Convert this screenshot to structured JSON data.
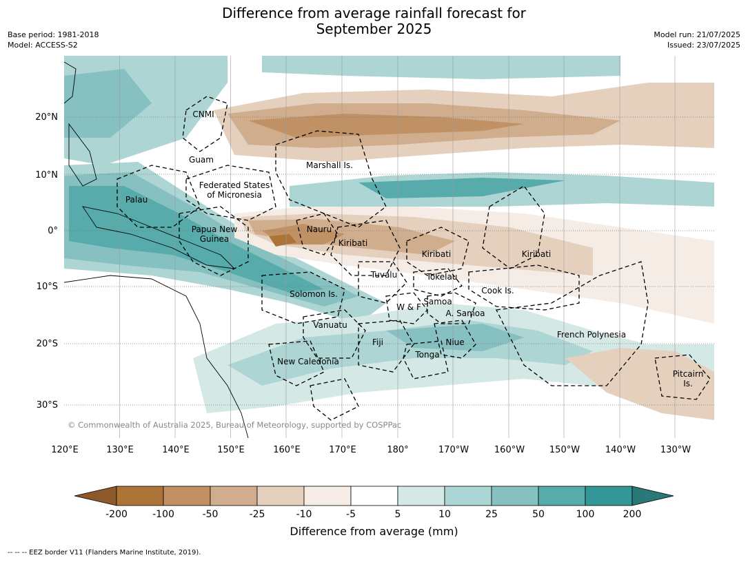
{
  "title_line1": "Difference from average rainfall forecast for",
  "title_line2": "September 2025",
  "meta_left": [
    "Base period: 1981-2018",
    "Model: ACCESS-S2"
  ],
  "meta_right": [
    "Model run: 21/07/2025",
    "Issued: 23/07/2025"
  ],
  "copyright": "© Commonwealth of Australia 2025, Bureau of Meteorology, supported by COSPPac",
  "lon_labels": [
    "120°E",
    "130°E",
    "140°E",
    "150°E",
    "160°E",
    "170°E",
    "180°",
    "170°W",
    "160°W",
    "150°W",
    "140°W",
    "130°W"
  ],
  "lat_labels": [
    "20°N",
    "10°N",
    "0°",
    "10°S",
    "20°S",
    "30°S"
  ],
  "regions": [
    {
      "name": "CNMI",
      "lines": [
        "CNMI"
      ]
    },
    {
      "name": "Guam",
      "lines": [
        "Guam"
      ]
    },
    {
      "name": "Marshall",
      "lines": [
        "Marshall Is."
      ]
    },
    {
      "name": "FSM",
      "lines": [
        "Federated States",
        "of Micronesia"
      ]
    },
    {
      "name": "Palau",
      "lines": [
        "Palau"
      ]
    },
    {
      "name": "PNG",
      "lines": [
        "Papua New",
        "Guinea"
      ]
    },
    {
      "name": "Nauru",
      "lines": [
        "Nauru"
      ]
    },
    {
      "name": "Kiribati-W",
      "lines": [
        "Kiribati"
      ]
    },
    {
      "name": "Kiribati-C",
      "lines": [
        "Kiribati"
      ]
    },
    {
      "name": "Kiribati-E",
      "lines": [
        "Kiribati"
      ]
    },
    {
      "name": "Tuvalu",
      "lines": [
        "Tuvalu"
      ]
    },
    {
      "name": "Tokelau",
      "lines": [
        "Tokelau"
      ]
    },
    {
      "name": "Cook",
      "lines": [
        "Cook Is."
      ]
    },
    {
      "name": "Solomon",
      "lines": [
        "Solomon Is."
      ]
    },
    {
      "name": "Samoa",
      "lines": [
        "Samoa"
      ]
    },
    {
      "name": "WF",
      "lines": [
        "W & F"
      ]
    },
    {
      "name": "ASamoa",
      "lines": [
        "A. Samoa"
      ]
    },
    {
      "name": "Vanuatu",
      "lines": [
        "Vanuatu"
      ]
    },
    {
      "name": "Fiji",
      "lines": [
        "Fiji"
      ]
    },
    {
      "name": "Niue",
      "lines": [
        "Niue"
      ]
    },
    {
      "name": "Tonga",
      "lines": [
        "Tonga"
      ]
    },
    {
      "name": "FrenchPolynesia",
      "lines": [
        "French Polynesia"
      ]
    },
    {
      "name": "NewCaledonia",
      "lines": [
        "New Caledonia"
      ]
    },
    {
      "name": "Pitcairn",
      "lines": [
        "Pitcairn",
        "Is."
      ]
    }
  ],
  "colorbar": {
    "ticks": [
      "-200",
      "-100",
      "-50",
      "-25",
      "-10",
      "-5",
      "5",
      "10",
      "25",
      "50",
      "100",
      "200"
    ],
    "colors": [
      "#ad7438",
      "#c09164",
      "#d0ad8c",
      "#e4d0bd",
      "#f4ece5",
      "#ffffff",
      "#d4e9e6",
      "#acd5d3",
      "#86c0c0",
      "#57abab",
      "#329796"
    ],
    "extend_low_color": "#8c5a28",
    "extend_high_color": "#2a7877",
    "label": "Difference from average (mm)"
  },
  "footnote": "-- -- -- EEZ border V11 (Flanders Marine Institute, 2019)."
}
